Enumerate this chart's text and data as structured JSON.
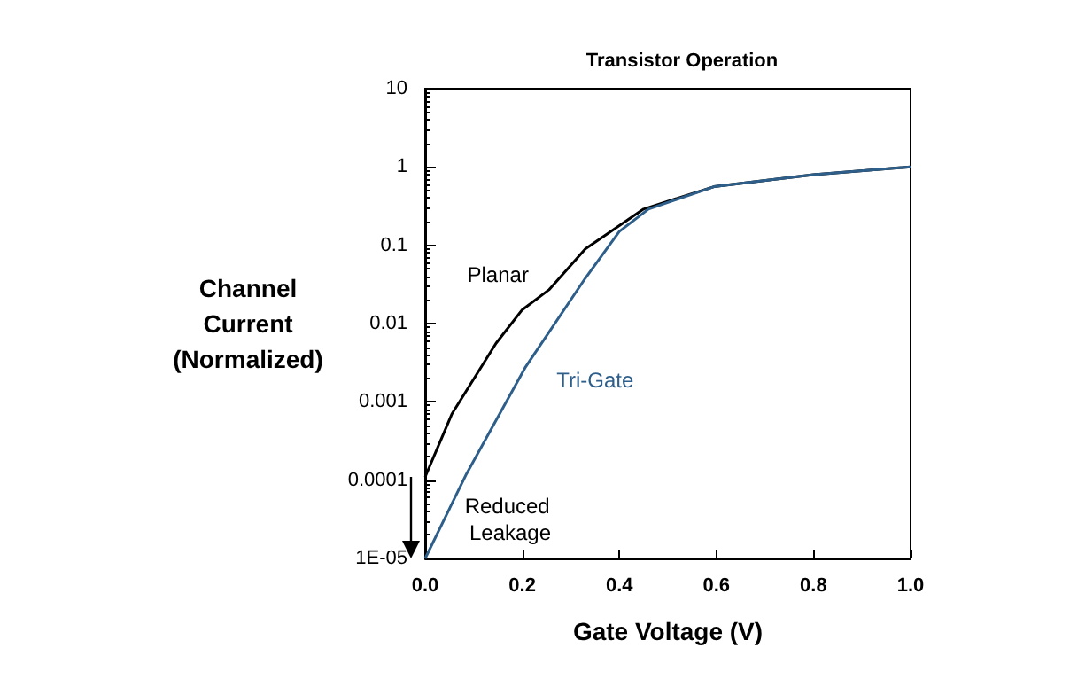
{
  "chart_data": {
    "type": "line",
    "title": "Transistor Operation",
    "xlabel": "Gate Voltage (V)",
    "ylabel": "Channel Current (Normalized)",
    "series": [
      {
        "name": "Planar",
        "color": "#000000",
        "x": [
          0,
          0.055,
          0.146,
          0.2,
          0.255,
          0.33,
          0.45,
          0.595,
          0.8,
          1.0
        ],
        "values": [
          0.00011,
          0.0007,
          0.0056,
          0.015,
          0.027,
          0.09,
          0.29,
          0.56,
          0.8,
          1.0
        ]
      },
      {
        "name": "Tri-Gate",
        "color": "#2e5f8a",
        "x": [
          0,
          0.085,
          0.207,
          0.33,
          0.4,
          0.46,
          0.595,
          0.8,
          1.0
        ],
        "values": [
          1e-05,
          0.00012,
          0.0028,
          0.038,
          0.15,
          0.29,
          0.56,
          0.8,
          1.0
        ]
      }
    ],
    "annotations": [
      "Reduced Leakage"
    ],
    "log": "y",
    "xlim": [
      0,
      1
    ],
    "ylim": [
      1e-05,
      10
    ],
    "xticks": [
      {
        "value": 0,
        "label": "0.0"
      },
      {
        "value": 0.2,
        "label": "0.2"
      },
      {
        "value": 0.4,
        "label": "0.4"
      },
      {
        "value": 0.6,
        "label": "0.6"
      },
      {
        "value": 0.8,
        "label": "0.8"
      },
      {
        "value": 1,
        "label": "1.0"
      }
    ],
    "yticks": [
      {
        "value": 1e-05,
        "label": "1E-05"
      },
      0.0001,
      0.001,
      0.01,
      0.1,
      1,
      10
    ],
    "grid": false,
    "legend": false,
    "marker": "none",
    "line_style": "solid"
  }
}
